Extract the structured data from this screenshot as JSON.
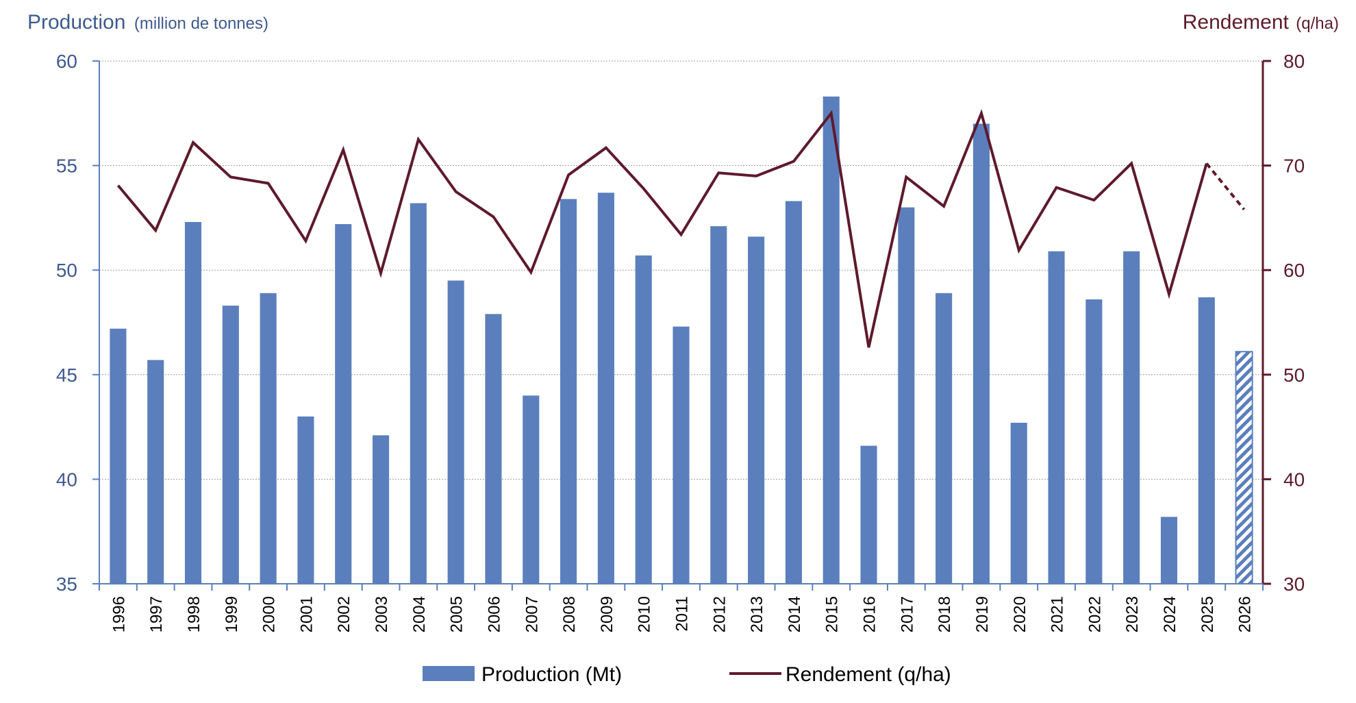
{
  "chart_data": {
    "type": "bar",
    "left_axis_title": {
      "main": "Production",
      "unit": "(million de tonnes)"
    },
    "right_axis_title": {
      "main": "Rendement",
      "unit": "(q/ha)"
    },
    "ylim_left": [
      35,
      60
    ],
    "yticks_left": [
      35,
      40,
      45,
      50,
      55,
      60
    ],
    "ylim_right": [
      30,
      80
    ],
    "yticks_right": [
      30,
      40,
      50,
      60,
      70,
      80
    ],
    "grid": true,
    "legend_position": "bottom-center",
    "categories": [
      "1996",
      "1997",
      "1998",
      "1999",
      "2000",
      "2001",
      "2002",
      "2003",
      "2004",
      "2005",
      "2006",
      "2007",
      "2008",
      "2009",
      "2010",
      "2011",
      "2012",
      "2013",
      "2014",
      "2015",
      "2016",
      "2017",
      "2018",
      "2019",
      "2020",
      "2021",
      "2022",
      "2023",
      "2024",
      "2025",
      "2026"
    ],
    "series": [
      {
        "name": "Production (Mt)",
        "type": "bar",
        "axis": "left",
        "color": "#5b7fbd",
        "forecast_pattern": "hatched",
        "forecast_from": "2026",
        "values": [
          47.2,
          45.7,
          52.3,
          48.3,
          48.9,
          43.0,
          52.2,
          42.1,
          53.2,
          49.5,
          47.9,
          44.0,
          53.4,
          53.7,
          50.7,
          47.3,
          52.1,
          51.6,
          53.3,
          58.3,
          41.6,
          53.0,
          48.9,
          57.0,
          42.7,
          50.9,
          48.6,
          50.9,
          38.2,
          48.7,
          46.1
        ]
      },
      {
        "name": "Rendement (q/ha)",
        "type": "line",
        "axis": "right",
        "color": "#5e1a2c",
        "forecast_style": "dashed",
        "forecast_from": "2026",
        "values": [
          68.1,
          63.8,
          72.2,
          68.9,
          68.3,
          62.8,
          71.5,
          59.7,
          72.5,
          67.5,
          65.1,
          59.8,
          69.1,
          71.7,
          67.8,
          63.4,
          69.3,
          69.0,
          70.4,
          75.0,
          52.6,
          68.9,
          66.1,
          75.0,
          61.9,
          67.9,
          66.7,
          70.2,
          57.7,
          70.2,
          65.8
        ]
      }
    ]
  }
}
